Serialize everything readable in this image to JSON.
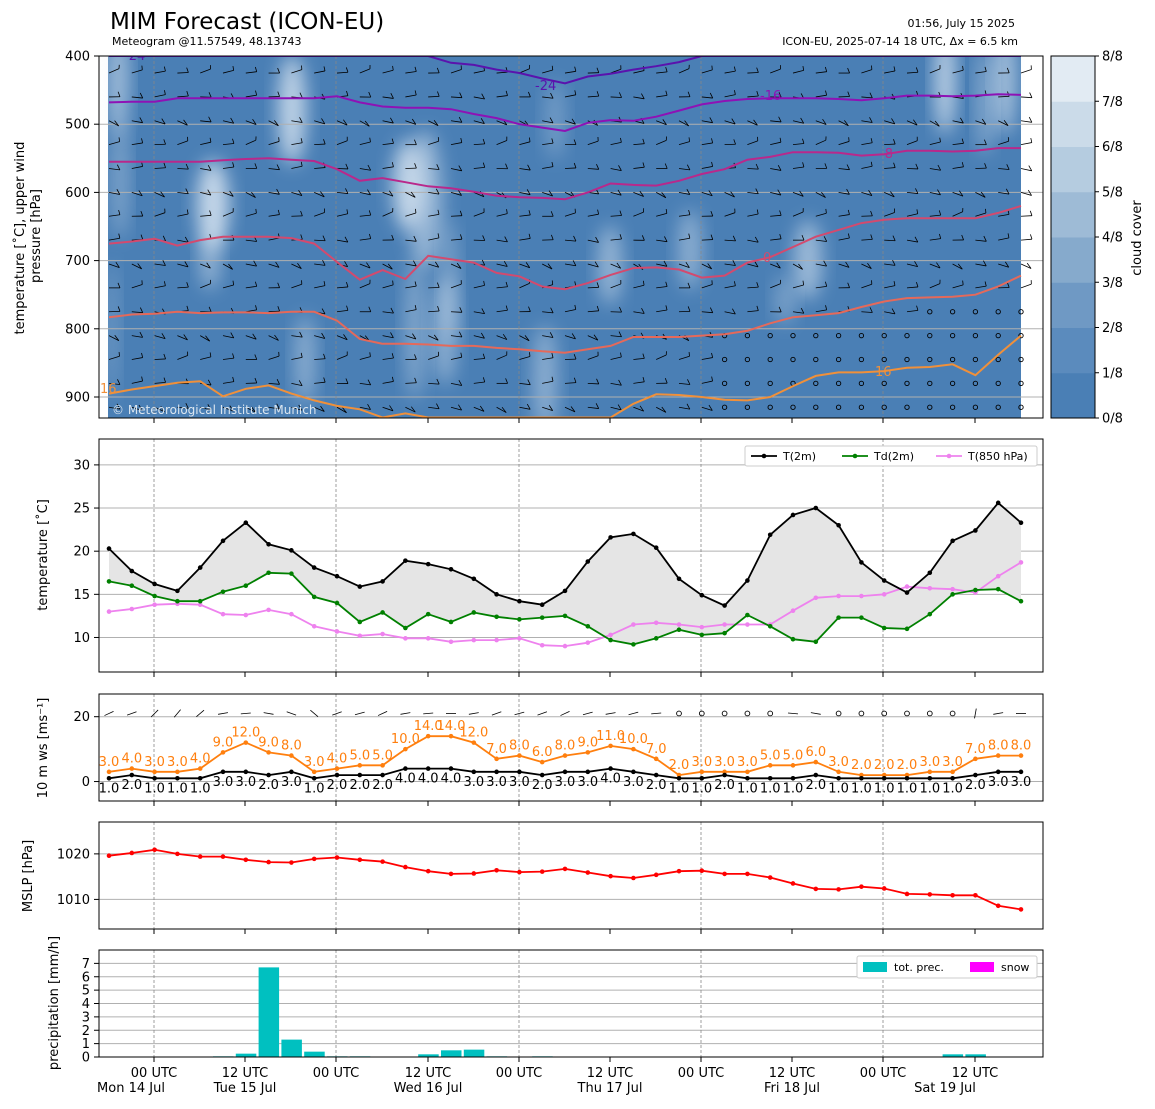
{
  "header": {
    "title": "MIM Forecast (ICON-EU)",
    "subtitle": "Meteogram @11.57549, 48.13743",
    "issued": "01:56, July 15 2025",
    "run": "ICON-EU, 2025-07-14 18 UTC, Δx = 6.5 km",
    "copyright": "© Meteorological Institute Munich"
  },
  "axis_time": {
    "tick_labels": [
      "00 UTC",
      "12 UTC",
      "00 UTC",
      "12 UTC",
      "00 UTC",
      "12 UTC",
      "00 UTC",
      "12 UTC",
      "00 UTC",
      "12 UTC"
    ],
    "day_labels": [
      "Mon 14 Jul",
      "Tue 15 Jul",
      "Wed 16 Jul",
      "Thu 17 Jul",
      "Fri 18 Jul",
      "Sat 19 Jul"
    ]
  },
  "chart_data": [
    {
      "id": "upper",
      "type": "heatmap",
      "ylabel": "temperature [˚C], upper wind\npressure [hPa]",
      "ylim": [
        930,
        400
      ],
      "yticks": [
        400,
        500,
        600,
        700,
        800,
        900
      ],
      "colorbar": {
        "label": "cloud cover",
        "ticks": [
          "0/8",
          "1/8",
          "2/8",
          "3/8",
          "4/8",
          "5/8",
          "6/8",
          "7/8",
          "8/8"
        ],
        "colors": [
          "#4a7fb5",
          "#5b8bbd",
          "#6f99c4",
          "#86aacc",
          "#9ebbd6",
          "#b5cce0",
          "#cbdbe9",
          "#e2ebf3",
          "#f4f8fb"
        ]
      },
      "isotherms": [
        {
          "label": "-24",
          "color": "#5a13ad",
          "values": [
            400,
            400,
            400,
            400,
            400,
            400,
            400,
            400,
            400,
            400,
            400,
            400,
            400,
            400,
            400,
            410,
            413,
            420,
            425,
            433,
            440,
            430,
            426,
            420,
            415,
            409,
            400,
            400,
            400,
            400,
            400,
            400,
            400,
            400,
            400,
            400,
            400,
            400,
            400,
            400,
            400
          ]
        },
        {
          "label": "-16",
          "color": "#8e12b5",
          "values": [
            468,
            467,
            467,
            462,
            462,
            462,
            462,
            462,
            462,
            462,
            459,
            468,
            474,
            476,
            476,
            478,
            485,
            491,
            500,
            505,
            510,
            498,
            494,
            495,
            489,
            480,
            471,
            466,
            463,
            462,
            462,
            462,
            463,
            465,
            462,
            458,
            458,
            459,
            458,
            456,
            457
          ]
        },
        {
          "label": "-8",
          "color": "#b9288b",
          "values": [
            555,
            555,
            555,
            555,
            555,
            553,
            551,
            550,
            552,
            554,
            566,
            583,
            579,
            585,
            591,
            594,
            599,
            605,
            607,
            608,
            610,
            600,
            587,
            589,
            590,
            583,
            573,
            566,
            552,
            548,
            541,
            541,
            542,
            546,
            544,
            539,
            539,
            540,
            539,
            535,
            535
          ]
        },
        {
          "label": "0",
          "color": "#d34a6e",
          "values": [
            675,
            672,
            668,
            678,
            670,
            665,
            665,
            665,
            667,
            675,
            702,
            728,
            714,
            727,
            693,
            698,
            703,
            718,
            723,
            738,
            742,
            733,
            721,
            711,
            710,
            713,
            725,
            722,
            703,
            695,
            680,
            665,
            655,
            645,
            640,
            638,
            638,
            638,
            638,
            630,
            620
          ]
        },
        {
          "label": "8",
          "color": "#e5695a",
          "values": [
            783,
            779,
            778,
            775,
            777,
            776,
            776,
            777,
            775,
            775,
            788,
            815,
            822,
            822,
            823,
            825,
            825,
            828,
            830,
            833,
            835,
            830,
            825,
            812,
            812,
            812,
            810,
            808,
            803,
            792,
            783,
            780,
            777,
            768,
            760,
            755,
            754,
            753,
            750,
            738,
            722
          ]
        },
        {
          "label": "16",
          "color": "#f0903a",
          "values": [
            895,
            889,
            884,
            879,
            877,
            899,
            888,
            883,
            895,
            905,
            913,
            918,
            930,
            924,
            930,
            930,
            930,
            930,
            930,
            930,
            930,
            930,
            930,
            910,
            896,
            897,
            900,
            904,
            905,
            900,
            884,
            869,
            864,
            864,
            862,
            857,
            856,
            852,
            868,
            838,
            810
          ]
        }
      ]
    },
    {
      "id": "temperature",
      "type": "line",
      "ylabel": "temperature [˚C]",
      "ylim": [
        6,
        33
      ],
      "yticks": [
        10,
        15,
        20,
        25,
        30
      ],
      "series": [
        {
          "name": "T(2m)",
          "color": "#000000",
          "values": [
            20.3,
            17.7,
            16.2,
            15.4,
            18.1,
            21.2,
            23.3,
            20.8,
            20.1,
            18.1,
            17.1,
            15.9,
            16.5,
            18.9,
            18.5,
            17.9,
            16.8,
            15.0,
            14.2,
            13.8,
            15.4,
            18.8,
            21.6,
            22.0,
            20.4,
            16.8,
            14.9,
            13.7,
            16.6,
            21.9,
            24.2,
            25.0,
            23.0,
            18.7,
            16.6,
            15.2,
            17.5,
            21.2,
            22.4,
            25.6,
            23.3
          ]
        },
        {
          "name": "Td(2m)",
          "color": "#008000",
          "values": [
            16.5,
            16.0,
            14.8,
            14.2,
            14.2,
            15.3,
            16.0,
            17.5,
            17.4,
            14.7,
            14.0,
            11.8,
            12.9,
            11.1,
            12.7,
            11.8,
            12.9,
            12.4,
            12.1,
            12.3,
            12.5,
            11.3,
            9.7,
            9.2,
            9.9,
            10.9,
            10.3,
            10.5,
            12.6,
            11.3,
            9.8,
            9.5,
            12.3,
            12.3,
            11.1,
            11.0,
            12.7,
            15.0,
            15.5,
            15.6,
            14.2
          ]
        },
        {
          "name": "T(850 hPa)",
          "color": "#ee82ee",
          "values": [
            13.0,
            13.3,
            13.8,
            13.9,
            13.8,
            12.7,
            12.6,
            13.2,
            12.7,
            11.3,
            10.7,
            10.2,
            10.4,
            9.9,
            9.9,
            9.5,
            9.7,
            9.7,
            9.9,
            9.1,
            9.0,
            9.4,
            10.3,
            11.5,
            11.7,
            11.5,
            11.2,
            11.5,
            11.5,
            11.5,
            13.1,
            14.6,
            14.8,
            14.8,
            15.0,
            15.9,
            15.7,
            15.6,
            15.2,
            17.1,
            18.7
          ]
        }
      ]
    },
    {
      "id": "wind",
      "type": "line",
      "ylabel": "10 m ws [ms⁻¹]",
      "ylim": [
        -6,
        27
      ],
      "yticks": [
        0,
        20
      ],
      "series": [
        {
          "name": "ws",
          "color": "#000000",
          "values": [
            1.0,
            2.0,
            1.0,
            1.0,
            1.0,
            3.0,
            3.0,
            2.0,
            3.0,
            1.0,
            2.0,
            2.0,
            2.0,
            4.0,
            4.0,
            4.0,
            3.0,
            3.0,
            3.0,
            2.0,
            3.0,
            3.0,
            4.0,
            3.0,
            2.0,
            1.0,
            1.0,
            2.0,
            1.0,
            1.0,
            1.0,
            2.0,
            1.0,
            1.0,
            1.0,
            1.0,
            1.0,
            1.0,
            2.0,
            3.0,
            3.0
          ]
        },
        {
          "name": "gusts",
          "color": "#ff7f0e",
          "values": [
            3.0,
            4.0,
            3.0,
            3.0,
            4.0,
            9.0,
            12.0,
            9.0,
            8.0,
            3.0,
            4.0,
            5.0,
            5.0,
            10.0,
            14.0,
            14.0,
            12.0,
            7.0,
            8.0,
            6.0,
            8.0,
            9.0,
            11.0,
            10.0,
            7.0,
            2.0,
            3.0,
            3.0,
            3.0,
            5.0,
            5.0,
            6.0,
            3.0,
            2.0,
            2.0,
            2.0,
            3.0,
            3.0,
            7.0,
            8.0,
            8.0
          ]
        }
      ],
      "wind_barbs": "small barbs along y=21"
    },
    {
      "id": "mslp",
      "type": "line",
      "ylabel": "MSLP [hPa]",
      "ylim": [
        1003.5,
        1027
      ],
      "yticks": [
        1010,
        1020
      ],
      "series": [
        {
          "name": "MSLP",
          "color": "#ff0000",
          "values": [
            1019.6,
            1020.2,
            1020.9,
            1020.0,
            1019.4,
            1019.4,
            1018.7,
            1018.2,
            1018.1,
            1018.9,
            1019.2,
            1018.7,
            1018.3,
            1017.1,
            1016.2,
            1015.6,
            1015.7,
            1016.4,
            1016.0,
            1016.1,
            1016.7,
            1015.9,
            1015.1,
            1014.7,
            1015.4,
            1016.2,
            1016.3,
            1015.6,
            1015.6,
            1014.8,
            1013.5,
            1012.3,
            1012.2,
            1012.8,
            1012.4,
            1011.2,
            1011.1,
            1010.9,
            1010.9,
            1008.6,
            1007.8
          ]
        }
      ]
    },
    {
      "id": "precip",
      "type": "bar",
      "ylabel": "precipitation [mm/h]",
      "ylim": [
        0,
        8
      ],
      "yticks": [
        0,
        1,
        2,
        3,
        4,
        5,
        6,
        7
      ],
      "series": [
        {
          "name": "tot. prec.",
          "color": "#00c0c0",
          "values": [
            0,
            0,
            0,
            0,
            0,
            0.05,
            0.25,
            6.7,
            1.3,
            0.4,
            0.05,
            0.05,
            0,
            0,
            0.2,
            0.5,
            0.55,
            0.05,
            0,
            0.05,
            0,
            0,
            0,
            0,
            0,
            0,
            0,
            0,
            0,
            0,
            0,
            0,
            0,
            0,
            0,
            0,
            0,
            0.2,
            0.2,
            0,
            0
          ]
        },
        {
          "name": "snow",
          "color": "#ff00ff",
          "values": [
            0,
            0,
            0,
            0,
            0,
            0,
            0,
            0,
            0,
            0,
            0,
            0,
            0,
            0,
            0,
            0,
            0,
            0,
            0,
            0,
            0,
            0,
            0,
            0,
            0,
            0,
            0,
            0,
            0,
            0,
            0,
            0,
            0,
            0,
            0,
            0,
            0,
            0,
            0,
            0,
            0
          ]
        }
      ]
    }
  ]
}
